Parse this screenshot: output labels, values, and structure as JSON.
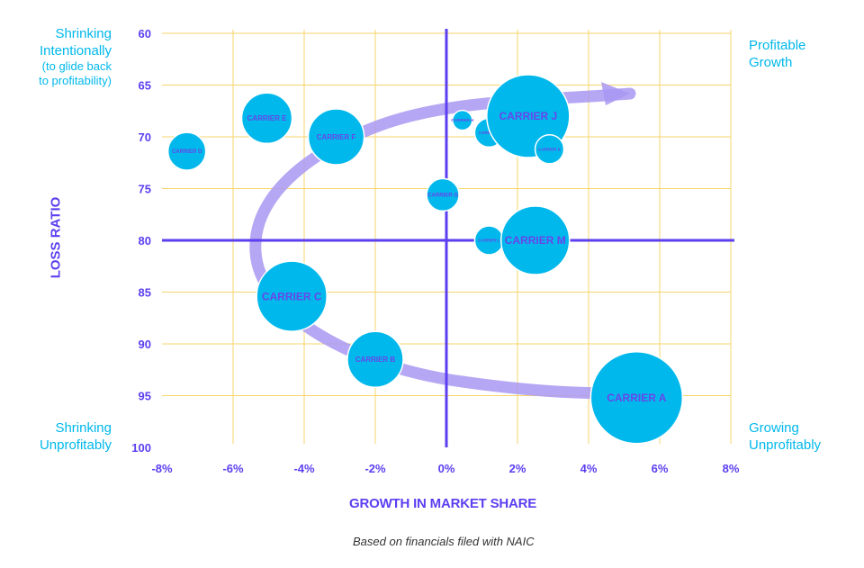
{
  "quadrants": {
    "top_left": {
      "title_line1": "Shrinking",
      "title_line2": "Intentionally",
      "sub_line1": "(to glide back",
      "sub_line2": "to profitability)"
    },
    "top_right": {
      "line1": "Profitable",
      "line2": "Growth"
    },
    "bottom_left": {
      "line1": "Shrinking",
      "line2": "Unprofitably"
    },
    "bottom_right": {
      "line1": "Growing",
      "line2": "Unprofitably"
    }
  },
  "footnote": "Based on financials filed with NAIC",
  "colors": {
    "bubble": "#00b8ec",
    "bubble_text": "#6a45e8",
    "axis": "#5b3ff0",
    "grid": "#f5d56b",
    "arrow": "#a998f2",
    "quadrant_text": "#00b8ec"
  },
  "chart_data": {
    "type": "bubble",
    "xlabel": "GROWTH IN MARKET SHARE",
    "ylabel": "LOSS RATIO",
    "xlim": [
      -8,
      8
    ],
    "ylim": [
      60,
      100
    ],
    "y_inverted": true,
    "x_ticks": [
      "-8%",
      "-6%",
      "-4%",
      "-2%",
      "0%",
      "2%",
      "4%",
      "6%",
      "8%"
    ],
    "x_tick_values": [
      -8,
      -6,
      -4,
      -2,
      0,
      2,
      4,
      6,
      8
    ],
    "y_ticks": [
      "60",
      "65",
      "70",
      "75",
      "80",
      "85",
      "90",
      "95",
      "100"
    ],
    "y_tick_values": [
      60,
      65,
      70,
      75,
      80,
      85,
      90,
      95,
      100
    ],
    "grid": true,
    "reference_lines": {
      "x": 0,
      "y": 80
    },
    "points": [
      {
        "label": "CARRIER A",
        "x": 5.35,
        "y": 95.2,
        "size": 51
      },
      {
        "label": "CARRIER B",
        "x": -2.0,
        "y": 91.5,
        "size": 31
      },
      {
        "label": "CARRIER C",
        "x": -4.35,
        "y": 85.4,
        "size": 39
      },
      {
        "label": "CARRIER D",
        "x": -7.3,
        "y": 71.4,
        "size": 21
      },
      {
        "label": "CARRIER E",
        "x": -5.05,
        "y": 68.2,
        "size": 28
      },
      {
        "label": "CARRIER F",
        "x": -3.1,
        "y": 70.0,
        "size": 31
      },
      {
        "label": "CARRIER G",
        "x": -0.1,
        "y": 75.6,
        "size": 18
      },
      {
        "label": "CARRIER H",
        "x": 0.45,
        "y": 68.4,
        "size": 11
      },
      {
        "label": "CARRIER I",
        "x": 1.2,
        "y": 69.6,
        "size": 16
      },
      {
        "label": "CARRIER J",
        "x": 2.3,
        "y": 68.0,
        "size": 46
      },
      {
        "label": "CARRIER K",
        "x": 2.9,
        "y": 71.2,
        "size": 16
      },
      {
        "label": "CARRIER L",
        "x": 1.2,
        "y": 80.0,
        "size": 16
      },
      {
        "label": "CARRIER M",
        "x": 2.5,
        "y": 80.0,
        "size": 38
      }
    ]
  }
}
